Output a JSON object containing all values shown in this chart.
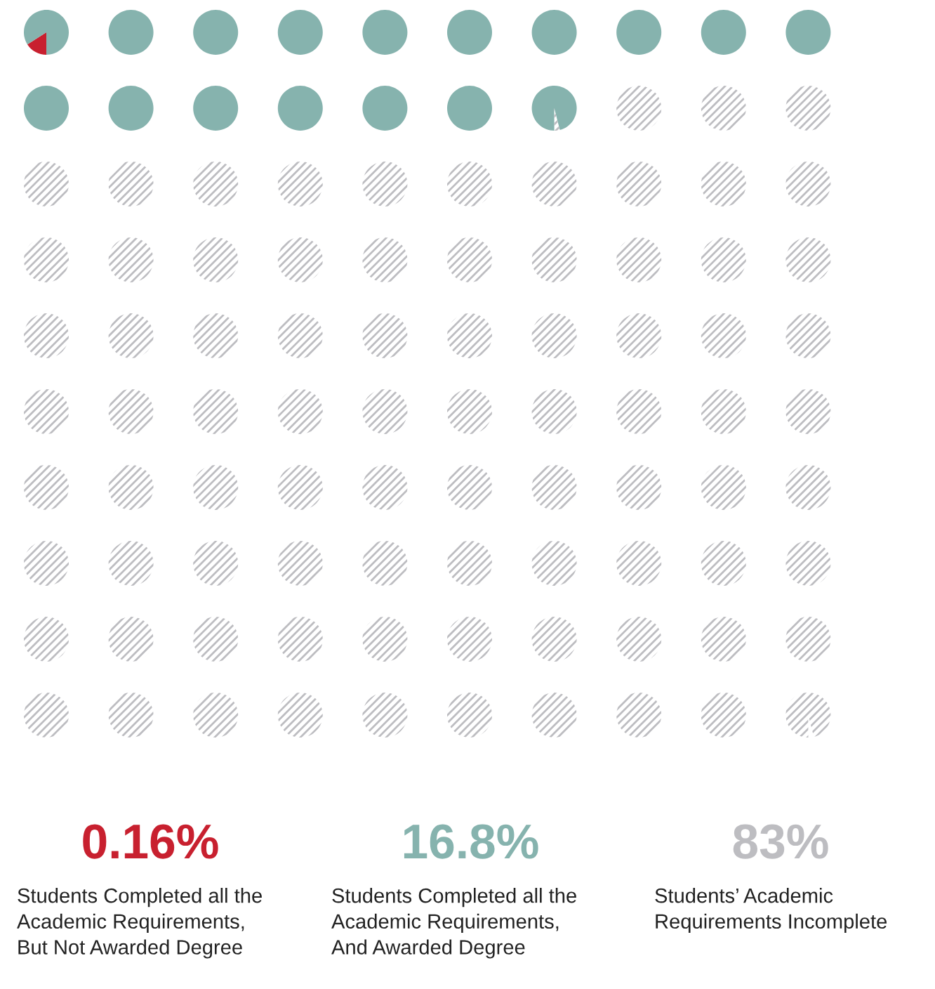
{
  "chart_data": {
    "type": "other",
    "categories": [
      "Students Completed all the\nAcademic Requirements,\nBut Not Awarded Degree",
      "Students Completed all the\nAcademic Requirements,\nAnd Awarded Degree",
      "Students’ Academic\nRequirements Incomplete"
    ],
    "values": [
      0.16,
      16.8,
      83
    ],
    "value_labels": [
      "0.16%",
      "16.8%",
      "83%"
    ],
    "colors": [
      "#c8202f",
      "#86b3ae",
      "#bdbdc1"
    ]
  }
}
